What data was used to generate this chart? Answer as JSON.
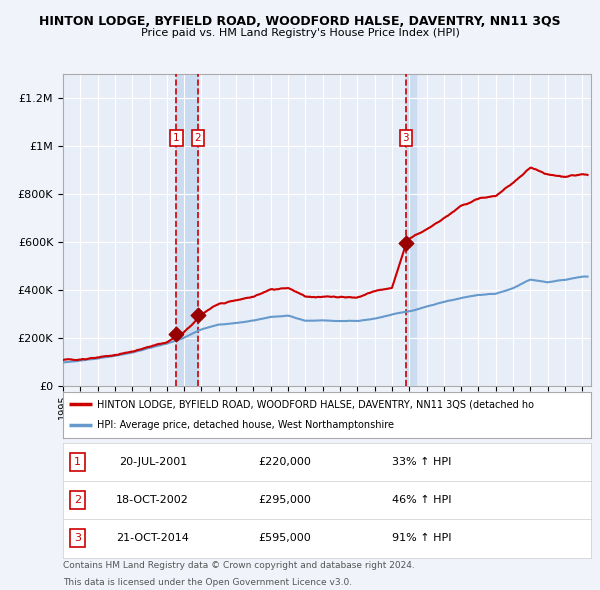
{
  "title": "HINTON LODGE, BYFIELD ROAD, WOODFORD HALSE, DAVENTRY, NN11 3QS",
  "subtitle": "Price paid vs. HM Land Registry's House Price Index (HPI)",
  "legend_line1": "HINTON LODGE, BYFIELD ROAD, WOODFORD HALSE, DAVENTRY, NN11 3QS (detached ho",
  "legend_line2": "HPI: Average price, detached house, West Northamptonshire",
  "transactions": [
    {
      "num": 1,
      "date": "20-JUL-2001",
      "price": 220000,
      "hpi_pct": "33% ↑ HPI",
      "year": 2001.55
    },
    {
      "num": 2,
      "date": "18-OCT-2002",
      "price": 295000,
      "hpi_pct": "46% ↑ HPI",
      "year": 2002.8
    },
    {
      "num": 3,
      "date": "21-OCT-2014",
      "price": 595000,
      "hpi_pct": "91% ↑ HPI",
      "year": 2014.8
    }
  ],
  "footer_line1": "Contains HM Land Registry data © Crown copyright and database right 2024.",
  "footer_line2": "This data is licensed under the Open Government Licence v3.0.",
  "background_color": "#f0f4fa",
  "plot_background": "#e8eef8",
  "grid_color": "#ffffff",
  "red_line_color": "#cc0000",
  "blue_line_color": "#6699cc",
  "marker_color": "#990000",
  "vline_color": "#cc0000",
  "highlight_color": "#ccdcf0",
  "ylim": [
    0,
    1300000
  ],
  "xlim_start": 1995,
  "xlim_end": 2025.5
}
